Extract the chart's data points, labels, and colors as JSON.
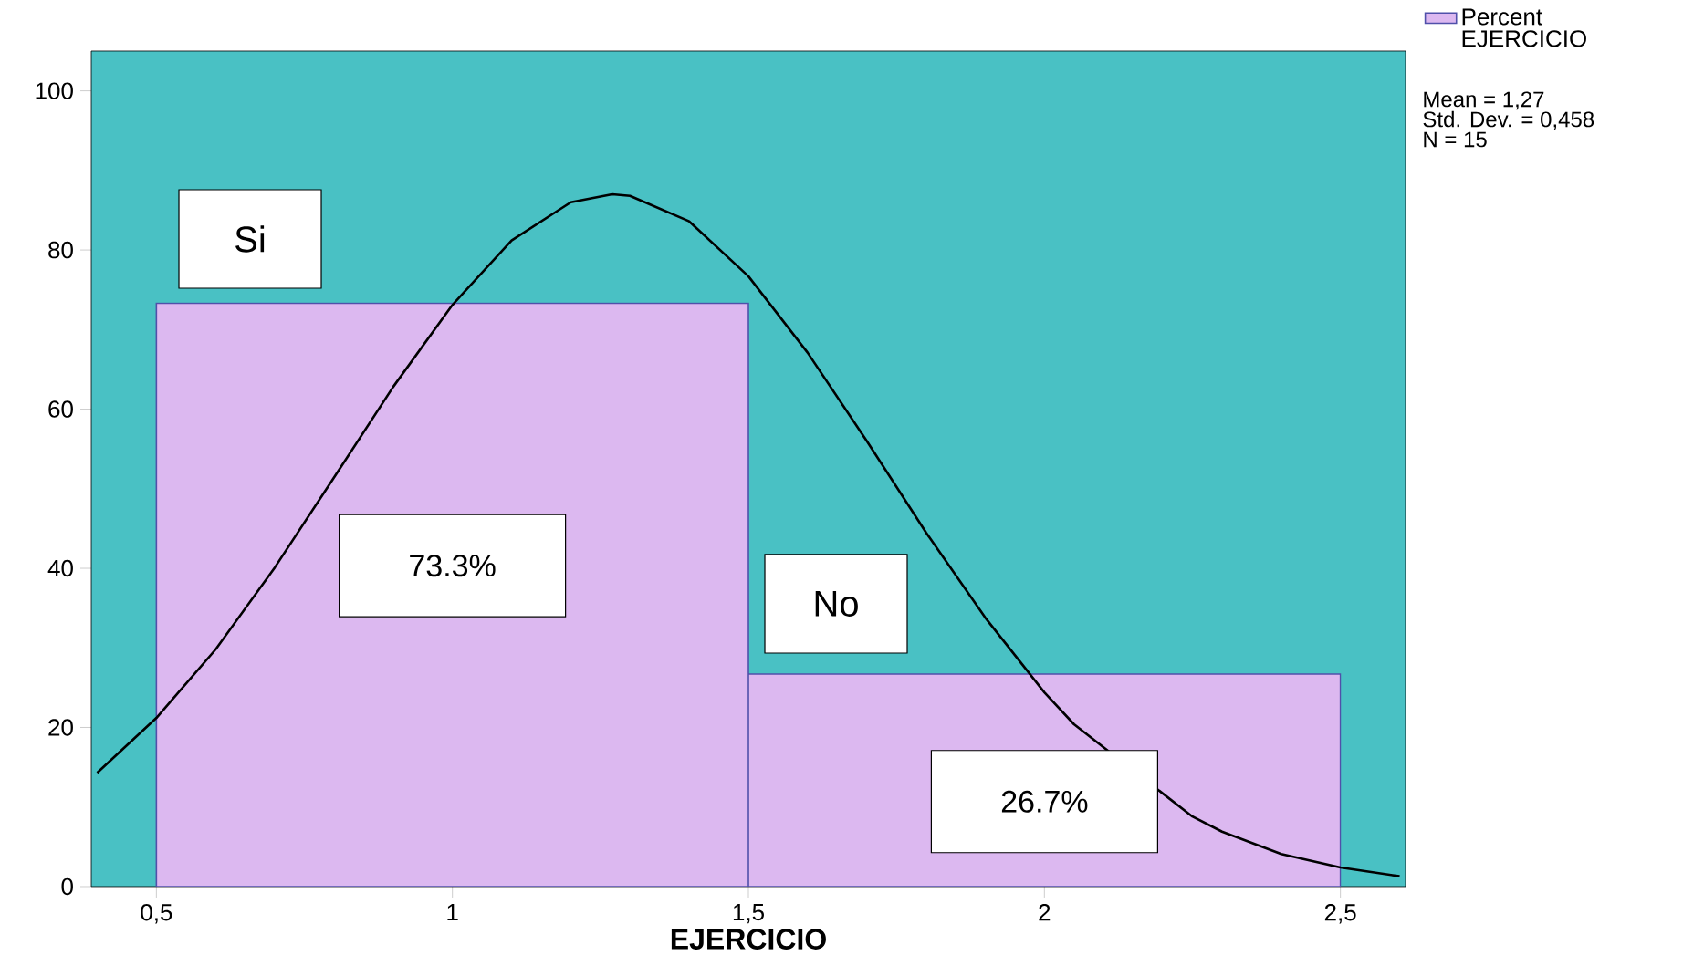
{
  "chart_data": {
    "type": "histogram",
    "xlabel": "EJERCICIO",
    "bins": [
      0.5,
      1.5,
      2.5
    ],
    "series": [
      {
        "name": "Percent EJERCICIO",
        "color": "#dcb8f0",
        "values": [
          73.3,
          26.7
        ],
        "value_labels": [
          "73.3%",
          "26.7%"
        ]
      },
      {
        "type": "line",
        "color": "#000000",
        "x": [
          0.4,
          0.5,
          0.6,
          0.7,
          0.8,
          0.9,
          1.0,
          1.1,
          1.2,
          1.27,
          1.3,
          1.4,
          1.5,
          1.6,
          1.7,
          1.8,
          1.9,
          2.0,
          2.05,
          2.25,
          2.3,
          2.4,
          2.5,
          2.6
        ],
        "values": [
          14.3,
          21.2,
          29.8,
          40.1,
          51.4,
          62.8,
          73.1,
          81.2,
          86.0,
          87.0,
          86.8,
          83.6,
          76.7,
          67.1,
          56.0,
          44.5,
          33.8,
          24.4,
          20.4,
          8.8,
          6.9,
          4.1,
          2.4,
          1.3
        ]
      }
    ],
    "annotations": [
      "Si",
      "No",
      "Mean = 1,27",
      "Std. Dev. = 0,458",
      "N = 15"
    ],
    "xlim": [
      0.39,
      2.61
    ],
    "ylim": [
      0,
      105
    ],
    "xticks": [
      {
        "value": 0.5,
        "label": "0,5"
      },
      {
        "value": 1,
        "label": "1"
      },
      {
        "value": 1.5,
        "label": "1,5"
      },
      {
        "value": 2,
        "label": "2"
      },
      {
        "value": 2.5,
        "label": "2,5"
      }
    ],
    "yticks": [
      0,
      20,
      40,
      60,
      80,
      100
    ],
    "grid": false,
    "legend": "top right",
    "marker": "none"
  }
}
